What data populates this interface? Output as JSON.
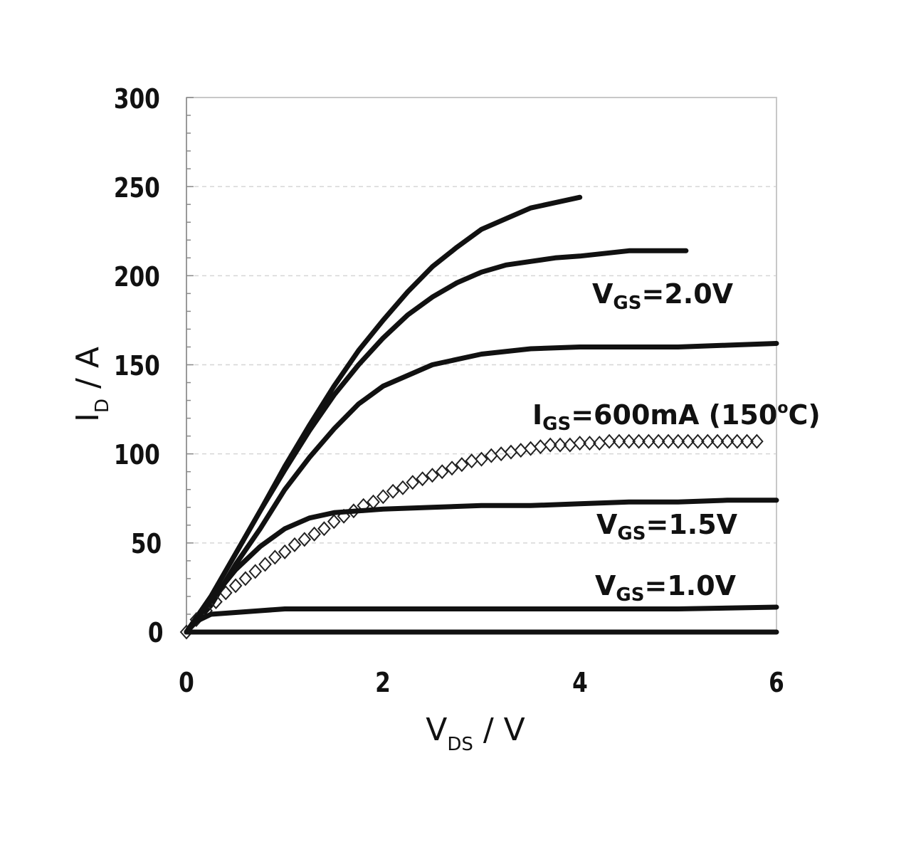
{
  "chart_data": {
    "type": "line",
    "title": "",
    "xlabel": {
      "main": "V",
      "sub": "DS",
      "unit": " / V"
    },
    "ylabel": {
      "main": "I",
      "sub": "D",
      "unit": " / A"
    },
    "xlim": [
      0,
      6
    ],
    "ylim": [
      0,
      300
    ],
    "xticks": [
      "0",
      "2",
      "4",
      "6"
    ],
    "yticks": [
      "300",
      "250",
      "200",
      "150",
      "100",
      "50",
      "0"
    ],
    "grid": true,
    "annotations": [
      {
        "main": "V",
        "sub": "GS",
        "rest": "=2.0V"
      },
      {
        "main": "I",
        "sub": "GS",
        "rest": "=600mA (150",
        "sup": "o",
        "tail": "C)"
      },
      {
        "main": "V",
        "sub": "GS",
        "rest": "=1.5V"
      },
      {
        "main": "V",
        "sub": "GS",
        "rest": "=1.0V"
      }
    ],
    "series": [
      {
        "style": "line",
        "x": [
          0,
          0.25,
          0.5,
          0.75,
          1.0,
          1.25,
          1.5,
          1.75,
          2.0,
          2.25,
          2.5,
          2.75,
          3.0,
          3.25,
          3.5,
          3.75,
          4.0
        ],
        "y": [
          0,
          20,
          44,
          68,
          93,
          116,
          138,
          158,
          175,
          191,
          205,
          216,
          226,
          232,
          238,
          241,
          244
        ]
      },
      {
        "style": "line",
        "x": [
          0,
          0.25,
          0.5,
          0.75,
          1.0,
          1.25,
          1.5,
          1.75,
          2.0,
          2.25,
          2.5,
          2.75,
          3.0,
          3.25,
          3.5,
          3.75,
          4.0,
          4.5,
          5.08
        ],
        "y": [
          0,
          20,
          44,
          68,
          91,
          113,
          133,
          150,
          165,
          178,
          188,
          196,
          202,
          206,
          208,
          210,
          211,
          214,
          214
        ]
      },
      {
        "style": "line",
        "x": [
          0,
          0.25,
          0.5,
          0.75,
          1.0,
          1.25,
          1.5,
          1.75,
          2.0,
          2.5,
          3.0,
          3.5,
          4.0,
          4.5,
          5.0,
          5.5,
          6.0
        ],
        "y": [
          0,
          15,
          38,
          58,
          80,
          98,
          114,
          128,
          138,
          150,
          156,
          159,
          160,
          160,
          160,
          161,
          162
        ]
      },
      {
        "style": "markers",
        "x": [
          0,
          0.1,
          0.2,
          0.3,
          0.4,
          0.5,
          0.6,
          0.7,
          0.8,
          0.9,
          1.0,
          1.1,
          1.2,
          1.3,
          1.4,
          1.5,
          1.6,
          1.7,
          1.8,
          1.9,
          2.0,
          2.1,
          2.2,
          2.3,
          2.4,
          2.5,
          2.6,
          2.7,
          2.8,
          2.9,
          3.0,
          3.1,
          3.2,
          3.3,
          3.4,
          3.5,
          3.6,
          3.7,
          3.8,
          3.9,
          4.0,
          4.1,
          4.2,
          4.3,
          4.4,
          4.5,
          4.6,
          4.7,
          4.8,
          4.9,
          5.0,
          5.1,
          5.2,
          5.3,
          5.4,
          5.5,
          5.6,
          5.7,
          5.8
        ],
        "y": [
          0,
          7,
          12,
          17,
          22,
          26,
          30,
          34,
          38,
          42,
          45,
          49,
          52,
          55,
          58,
          62,
          65,
          68,
          71,
          73,
          76,
          79,
          81,
          84,
          86,
          88,
          90,
          92,
          94,
          96,
          97,
          99,
          100,
          101,
          102,
          103,
          104,
          105,
          105,
          105,
          106,
          106,
          106,
          107,
          107,
          107,
          107,
          107,
          107,
          107,
          107,
          107,
          107,
          107,
          107,
          107,
          107,
          107,
          107
        ]
      },
      {
        "style": "line",
        "x": [
          0,
          0.25,
          0.5,
          0.75,
          1.0,
          1.25,
          1.5,
          1.75,
          2.0,
          2.5,
          3.0,
          3.5,
          4.0,
          4.5,
          5.0,
          5.5,
          6.0
        ],
        "y": [
          0,
          18,
          35,
          48,
          58,
          64,
          67,
          68,
          69,
          70,
          71,
          71,
          72,
          73,
          73,
          74,
          74
        ]
      },
      {
        "style": "line",
        "x": [
          0,
          0.1,
          0.25,
          0.5,
          0.75,
          1.0,
          1.5,
          2.0,
          3.0,
          4.0,
          5.0,
          6.0
        ],
        "y": [
          0,
          6,
          10,
          11,
          12,
          13,
          13,
          13,
          13,
          13,
          13,
          14
        ]
      },
      {
        "style": "line",
        "x": [
          0,
          6.0
        ],
        "y": [
          0,
          0
        ]
      }
    ]
  }
}
